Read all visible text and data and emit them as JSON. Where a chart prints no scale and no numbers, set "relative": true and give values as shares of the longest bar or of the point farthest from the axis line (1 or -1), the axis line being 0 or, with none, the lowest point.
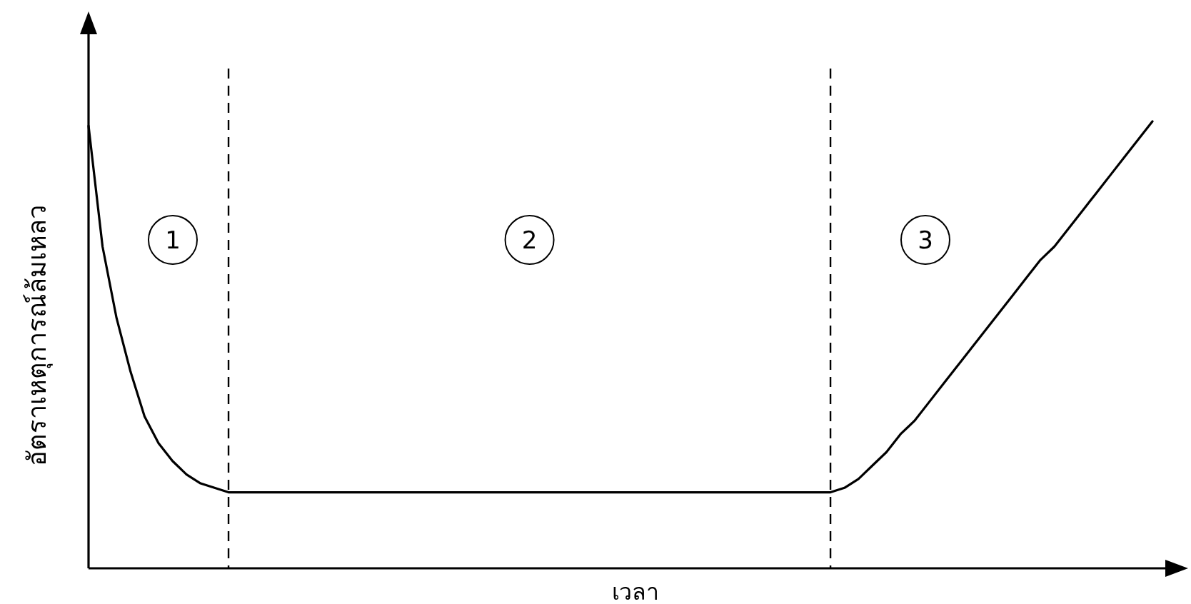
{
  "chart_data": {
    "type": "line",
    "relative": true,
    "xlabel": "เวลา",
    "ylabel": "อัตราเหตุการณ์ล้มเหลว",
    "categories": [
      null,
      null,
      null,
      null,
      null,
      null,
      null,
      null,
      null,
      null,
      null,
      null,
      null,
      null,
      null,
      null,
      null,
      null,
      null,
      null,
      null,
      null,
      null,
      null,
      null,
      null,
      null,
      null,
      null,
      null,
      null,
      null,
      null,
      null,
      null,
      null,
      null,
      null,
      null,
      null,
      null,
      null,
      null,
      null,
      null,
      null,
      null,
      null,
      null,
      null,
      null,
      null,
      null,
      null,
      null,
      null,
      null,
      null,
      null,
      null,
      null,
      null,
      null,
      null,
      null,
      null,
      null,
      null,
      null,
      null,
      null,
      null,
      null,
      null,
      null,
      null,
      null
    ],
    "series": [
      {
        "color": "#000000",
        "values": [
          0.99,
          0.72,
          0.56,
          0.44,
          0.34,
          0.28,
          0.24,
          0.21,
          0.19,
          0.18,
          0.17,
          0.17,
          0.17,
          0.17,
          0.17,
          0.17,
          0.17,
          0.17,
          0.17,
          0.17,
          0.17,
          0.17,
          0.17,
          0.17,
          0.17,
          0.17,
          0.17,
          0.17,
          0.17,
          0.17,
          0.17,
          0.17,
          0.17,
          0.17,
          0.17,
          0.17,
          0.17,
          0.17,
          0.17,
          0.17,
          0.17,
          0.17,
          0.17,
          0.17,
          0.17,
          0.17,
          0.17,
          0.17,
          0.17,
          0.17,
          0.17,
          0.17,
          0.17,
          0.17,
          0.18,
          0.2,
          0.23,
          0.26,
          0.3,
          0.33,
          0.37,
          0.41,
          0.45,
          0.49,
          0.53,
          0.57,
          0.61,
          0.65,
          0.69,
          0.72,
          0.76,
          0.8,
          0.84,
          0.88,
          0.92,
          0.96,
          1.0
        ]
      }
    ],
    "annotations": [
      "1",
      "2",
      "3"
    ]
  }
}
